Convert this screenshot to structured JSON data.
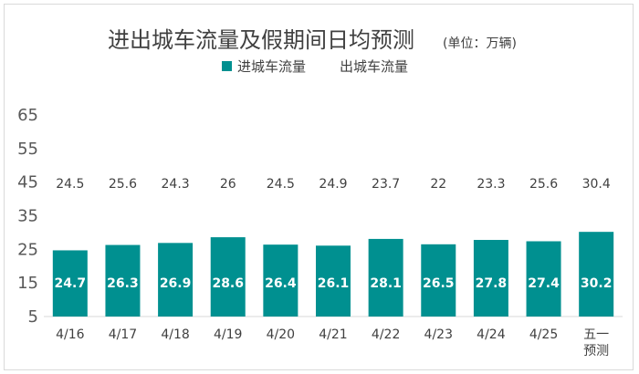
{
  "chart_data": {
    "type": "bar",
    "title": "进出城车流量及假期间日均预测",
    "unit": "(单位：万辆)",
    "categories": [
      "4/16",
      "4/17",
      "4/18",
      "4/19",
      "4/20",
      "4/21",
      "4/22",
      "4/23",
      "4/24",
      "4/25",
      "五一\n预测"
    ],
    "series": [
      {
        "name": "进城车流量",
        "color": "#009090",
        "values": [
          24.7,
          26.3,
          26.9,
          28.6,
          26.4,
          26.1,
          28.1,
          26.5,
          27.8,
          27.4,
          30.2
        ]
      },
      {
        "name": "出城车流量",
        "values": [
          24.5,
          25.6,
          24.3,
          26,
          24.5,
          24.9,
          23.7,
          22,
          23.3,
          25.6,
          30.4
        ]
      }
    ],
    "y_ticks": [
      5,
      15,
      25,
      35,
      45,
      55,
      65
    ],
    "ylim": [
      5,
      65
    ],
    "grid": false,
    "legend_position": "top"
  }
}
